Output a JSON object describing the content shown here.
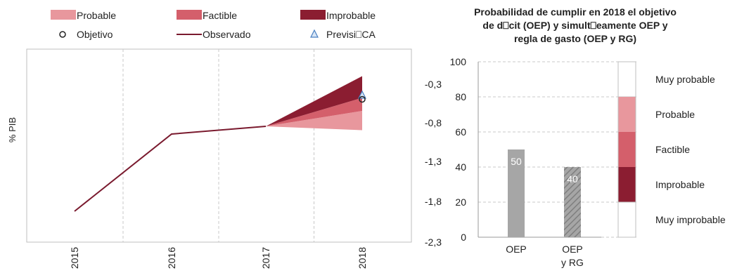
{
  "chart_data": [
    {
      "type": "area",
      "ylabel": "% PIB",
      "x": [
        "2015",
        "2016",
        "2017",
        "2018"
      ],
      "ylim": [
        -2.3,
        0.2
      ],
      "grid": "vertical dashed",
      "legend": {
        "placement": "top",
        "entries": [
          {
            "key": "probable",
            "label": "Probable",
            "color": "#e8979d"
          },
          {
            "key": "factible",
            "label": "Factible",
            "color": "#d45f6b"
          },
          {
            "key": "improbable",
            "label": "Improbable",
            "color": "#8b1d31"
          },
          {
            "key": "objetivo",
            "label": "Objetivo",
            "color": "#222222"
          },
          {
            "key": "observado",
            "label": "Observado",
            "color": "#7a1a2e"
          },
          {
            "key": "prevision",
            "label": "Previsi⎕CA",
            "color": "#5b8fd0"
          }
        ]
      },
      "observado": {
        "x": [
          "2015",
          "2016",
          "2017"
        ],
        "values": [
          -1.9,
          -0.9,
          -0.8
        ]
      },
      "fan": {
        "start": {
          "x": "2017",
          "value": -0.8
        },
        "end_x": "2018",
        "improbable": [
          -0.15,
          -0.43
        ],
        "factible": [
          -0.43,
          -0.6
        ],
        "probable": [
          -0.6,
          -0.85
        ]
      },
      "objetivo": {
        "x": "2018",
        "value": -0.45
      },
      "prevision_ca": {
        "x": "2018",
        "value": -0.4
      }
    },
    {
      "type": "bar",
      "title_lines": [
        "Probabilidad de cumplir en 2018 el objetivo",
        "de d⎕cit (OEP) y simult⎕eamente OEP y",
        "regla de gasto (OEP y RG)"
      ],
      "left_axis": {
        "ylim": [
          0,
          100
        ],
        "ticks": [
          "0",
          "20",
          "40",
          "60",
          "80",
          "100"
        ]
      },
      "right_axis_labels": [
        "-0,3",
        "-0,8",
        "-1,3",
        "-1,8",
        "-2,3"
      ],
      "categories": [
        {
          "label_lines": [
            "OEP"
          ],
          "value": 50,
          "value_label": "50",
          "pattern": "solid",
          "color": "#a6a6a6"
        },
        {
          "label_lines": [
            "OEP",
            "y RG"
          ],
          "value": 40,
          "value_label": "40",
          "pattern": "hatched",
          "color": "#a6a6a6"
        }
      ],
      "scale_bar": [
        {
          "label": "Muy probable",
          "from": 80,
          "to": 100,
          "color": "#ffffff"
        },
        {
          "label": "Probable",
          "from": 60,
          "to": 80,
          "color": "#e8979d"
        },
        {
          "label": "Factible",
          "from": 40,
          "to": 60,
          "color": "#d45f6b"
        },
        {
          "label": "Improbable",
          "from": 20,
          "to": 40,
          "color": "#8b1d31"
        },
        {
          "label": "Muy improbable",
          "from": 0,
          "to": 20,
          "color": "#ffffff"
        }
      ]
    }
  ]
}
